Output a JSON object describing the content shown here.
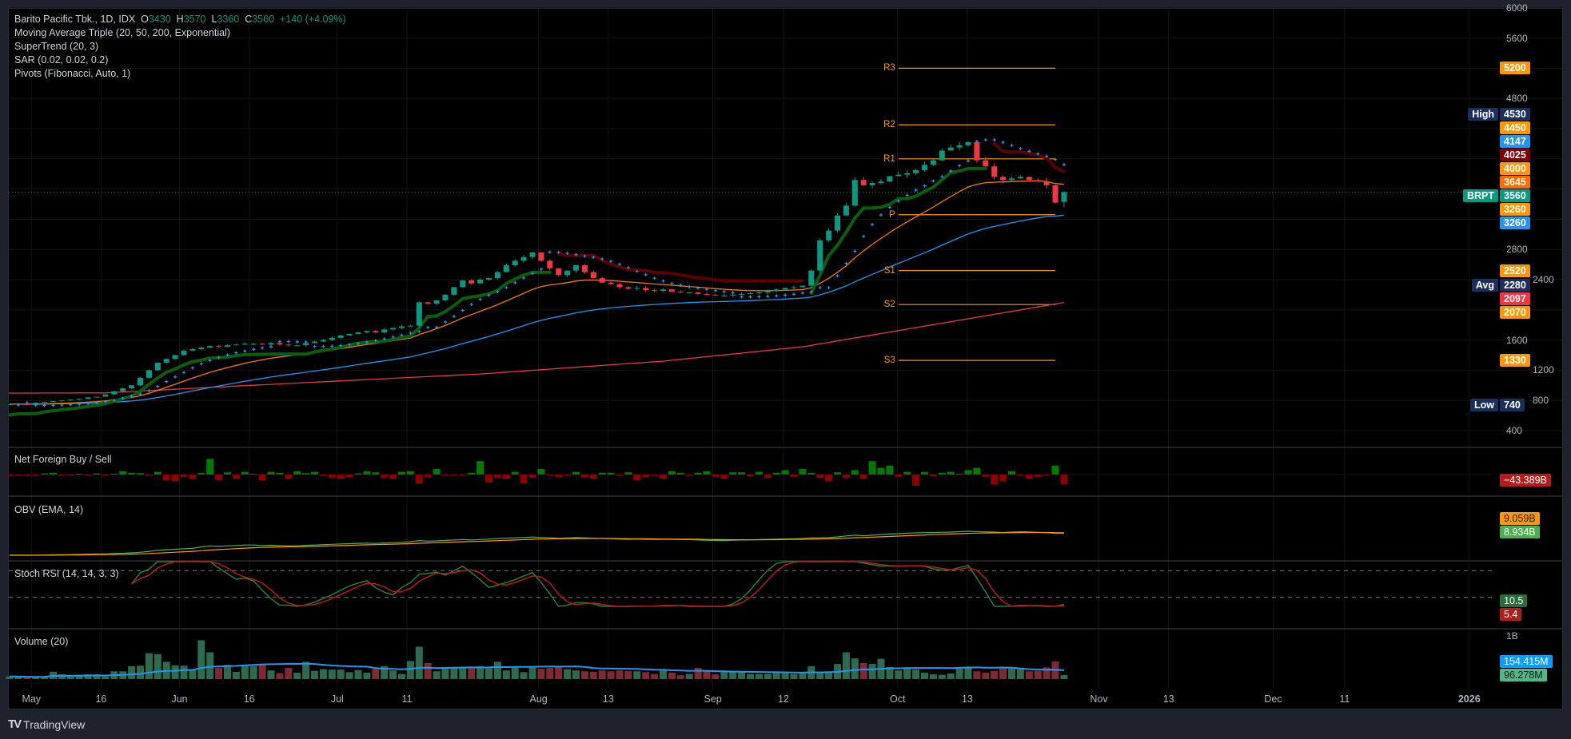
{
  "legend": {
    "symbol": "Barito Pacific Tbk., 1D, IDX",
    "o_label": "O",
    "open": "3430",
    "h_label": "H",
    "high": "3570",
    "l_label": "L",
    "low": "3360",
    "c_label": "C",
    "close": "3560",
    "change": "+140 (+4.09%)",
    "indicators": [
      "Moving Average Triple (20, 50, 200, Exponential)",
      "SuperTrend (20, 3)",
      "SAR (0.02, 0.02, 0.2)",
      "Pivots (Fibonacci, Auto, 1)"
    ]
  },
  "panes": {
    "net_foreign": {
      "title": "Net Foreign Buy / Sell",
      "value_label": "−43.389B"
    },
    "obv": {
      "title": "OBV (EMA, 14)",
      "ema_label": "9.059B",
      "obv_label": "8.934B"
    },
    "stoch": {
      "title": "Stoch RSI (14, 14, 3, 3)",
      "k_label": "10.5",
      "d_label": "5.4",
      "upper": 80,
      "lower": 20
    },
    "volume": {
      "title": "Volume (20)",
      "axis_label": "1B",
      "ma_label": "154.415M",
      "vol_label": "96.278M"
    }
  },
  "price_axis": {
    "ticks": [
      "6000",
      "5600",
      "4800",
      "2800",
      "2400",
      "1600",
      "1200",
      "800",
      "400"
    ],
    "labels": [
      {
        "value": 5200,
        "text": "5200",
        "bg": "#ff9800",
        "fg": "#ffffff",
        "tag": ""
      },
      {
        "value": 4530,
        "text": "4530",
        "bg": "#1b2f5e",
        "fg": "#ffffff",
        "tag": "High"
      },
      {
        "value": 4450,
        "text": "4450",
        "bg": "#ff9800",
        "fg": "#ffffff",
        "tag": ""
      },
      {
        "value": 4147,
        "text": "4147",
        "bg": "#2196f3",
        "fg": "#ffffff",
        "tag": ""
      },
      {
        "value": 4025,
        "text": "4025",
        "bg": "#7f0000",
        "fg": "#ffffff",
        "tag": ""
      },
      {
        "value": 4000,
        "text": "4000",
        "bg": "#ff9800",
        "fg": "#ffffff",
        "tag": ""
      },
      {
        "value": 3645,
        "text": "3645",
        "bg": "#ff6d00",
        "fg": "#ffffff",
        "tag": ""
      },
      {
        "value": 3560,
        "text": "3560",
        "bg": "#089981",
        "fg": "#ffffff",
        "tag": "BRPT"
      },
      {
        "value": 3260,
        "text": "3260",
        "bg": "#ff9800",
        "fg": "#ffffff",
        "tag": ""
      },
      {
        "value": 3259,
        "text": "3260",
        "bg": "#2196f3",
        "fg": "#ffffff",
        "tag": ""
      },
      {
        "value": 2520,
        "text": "2520",
        "bg": "#ff9800",
        "fg": "#ffffff",
        "tag": ""
      },
      {
        "value": 2280,
        "text": "2280",
        "bg": "#1b2f5e",
        "fg": "#ffffff",
        "tag": "Avg"
      },
      {
        "value": 2097,
        "text": "2097",
        "bg": "#f23645",
        "fg": "#ffffff",
        "tag": ""
      },
      {
        "value": 2070,
        "text": "2070",
        "bg": "#ff9800",
        "fg": "#ffffff",
        "tag": ""
      },
      {
        "value": 1330,
        "text": "1330",
        "bg": "#ff9800",
        "fg": "#ffffff",
        "tag": ""
      },
      {
        "value": 740,
        "text": "740",
        "bg": "#1b2f5e",
        "fg": "#ffffff",
        "tag": "Low"
      }
    ]
  },
  "time_axis": [
    {
      "text": "May",
      "bar": 2.5
    },
    {
      "text": "16",
      "bar": 10.5
    },
    {
      "text": "Jun",
      "bar": 19.5
    },
    {
      "text": "16",
      "bar": 27.5
    },
    {
      "text": "Jul",
      "bar": 37.6
    },
    {
      "text": "11",
      "bar": 45.6
    },
    {
      "text": "Aug",
      "bar": 60.7
    },
    {
      "text": "13",
      "bar": 68.7
    },
    {
      "text": "Sep",
      "bar": 80.7
    },
    {
      "text": "12",
      "bar": 88.8
    },
    {
      "text": "Oct",
      "bar": 101.9
    },
    {
      "text": "13",
      "bar": 109.9
    },
    {
      "text": "Nov",
      "bar": 125
    },
    {
      "text": "13",
      "bar": 133
    },
    {
      "text": "Dec",
      "bar": 145
    },
    {
      "text": "11",
      "bar": 153.2
    },
    {
      "text": "2026",
      "bar": 167.5,
      "bold": true
    }
  ],
  "chart_data": {
    "type": "candlestick",
    "title": "Barito Pacific Tbk., 1D, IDX",
    "ylim": [
      400,
      6000
    ],
    "y_scale": "linear",
    "closes": [
      750,
      760,
      740,
      770,
      780,
      790,
      800,
      810,
      820,
      840,
      850,
      880,
      920,
      960,
      1000,
      1100,
      1200,
      1300,
      1350,
      1400,
      1460,
      1480,
      1500,
      1520,
      1510,
      1530,
      1540,
      1550,
      1550,
      1540,
      1560,
      1540,
      1530,
      1530,
      1560,
      1580,
      1600,
      1630,
      1660,
      1680,
      1700,
      1720,
      1700,
      1740,
      1760,
      1780,
      1790,
      2100,
      2080,
      2125,
      2200,
      2300,
      2390,
      2350,
      2400,
      2420,
      2500,
      2590,
      2650,
      2700,
      2760,
      2650,
      2550,
      2460,
      2520,
      2590,
      2500,
      2420,
      2360,
      2340,
      2300,
      2280,
      2290,
      2260,
      2250,
      2270,
      2240,
      2230,
      2230,
      2210,
      2200,
      2190,
      2190,
      2200,
      2210,
      2220,
      2230,
      2250,
      2270,
      2290,
      2300,
      2320,
      2520,
      2920,
      3050,
      3250,
      3380,
      3720,
      3650,
      3680,
      3700,
      3770,
      3790,
      3810,
      3850,
      3920,
      3980,
      4110,
      4150,
      4180,
      4220,
      3980,
      3900,
      3760,
      3720,
      3740,
      3760,
      3720,
      3700,
      3650,
      3420,
      3560
    ],
    "last_bar": {
      "open": 3430,
      "high": 3570,
      "low": 3360,
      "close": 3560
    },
    "ema200_points": [
      [
        0,
        897
      ],
      [
        11,
        900
      ],
      [
        26,
        990
      ],
      [
        54,
        1150
      ],
      [
        75,
        1320
      ],
      [
        91,
        1510
      ],
      [
        121,
        2097
      ]
    ],
    "pivots": [
      {
        "label": "R3",
        "value": 5200
      },
      {
        "label": "R2",
        "value": 4450
      },
      {
        "label": "R1",
        "value": 4000
      },
      {
        "label": "P",
        "value": 3260
      },
      {
        "label": "S1",
        "value": 2520
      },
      {
        "label": "S2",
        "value": 2070
      },
      {
        "label": "S3",
        "value": 1330
      }
    ],
    "pivot_start_bar": 102,
    "last_price": 3560,
    "volume_m": [
      60,
      60,
      40,
      50,
      60,
      170,
      110,
      60,
      100,
      110,
      110,
      60,
      180,
      180,
      300,
      310,
      600,
      580,
      400,
      320,
      310,
      210,
      900,
      620,
      260,
      330,
      170,
      320,
      300,
      350,
      200,
      140,
      260,
      150,
      400,
      190,
      230,
      220,
      220,
      160,
      210,
      150,
      240,
      300,
      200,
      120,
      420,
      750,
      370,
      180,
      280,
      250,
      280,
      280,
      300,
      250,
      400,
      200,
      280,
      160,
      280,
      240,
      260,
      280,
      230,
      200,
      180,
      170,
      200,
      180,
      200,
      190,
      180,
      160,
      120,
      200,
      150,
      90,
      120,
      260,
      200,
      110,
      170,
      180,
      170,
      120,
      120,
      120,
      140,
      140,
      120,
      140,
      300,
      140,
      180,
      350,
      620,
      480,
      370,
      350,
      470,
      280,
      200,
      270,
      220,
      150,
      110,
      100,
      130,
      240,
      260,
      180,
      150,
      190,
      250,
      270,
      240,
      180,
      190,
      270,
      410,
      96
    ],
    "net_foreign_b": [
      -5,
      -5,
      -5,
      -5,
      5,
      8,
      -3,
      -3,
      3,
      -3,
      5,
      -3,
      3,
      15,
      8,
      6,
      -5,
      12,
      -25,
      -30,
      -10,
      -20,
      8,
      70,
      -25,
      10,
      -20,
      12,
      3,
      -25,
      12,
      8,
      -20,
      15,
      6,
      12,
      -5,
      -15,
      -20,
      -12,
      5,
      15,
      10,
      -15,
      -20,
      12,
      15,
      -40,
      -12,
      25,
      -5,
      -5,
      -5,
      8,
      60,
      -35,
      -15,
      -20,
      12,
      -40,
      -15,
      25,
      -5,
      -12,
      -5,
      12,
      -12,
      -18,
      8,
      8,
      -5,
      10,
      -25,
      -12,
      -5,
      -20,
      15,
      8,
      -5,
      8,
      15,
      -10,
      -18,
      10,
      10,
      -8,
      12,
      -15,
      8,
      20,
      -10,
      25,
      8,
      -15,
      -30,
      10,
      -15,
      20,
      -20,
      60,
      30,
      40,
      -10,
      12,
      -50,
      12,
      -8,
      8,
      12,
      3,
      20,
      30,
      -10,
      -45,
      -30,
      15,
      -5,
      -18,
      -10,
      -5,
      40,
      -43.389
    ]
  },
  "colors": {
    "up": "#089981",
    "down": "#f23645",
    "ema20": "#f57c00",
    "ema50": "#2196f3",
    "ema200": "#e53945",
    "st_up": "#0b5e0b",
    "st_down": "#5c0000",
    "sar": "#2196f3",
    "pivot": "#ff9800",
    "vol_up": "#2c6b50",
    "vol_down": "#7d2a33",
    "vol_ma": "#2196f3",
    "obv": "#4caf50",
    "obv_ema": "#ff9800",
    "stoch_k": "#2e7d32",
    "stoch_d": "#b71c1c",
    "nf_up": "#007a00",
    "nf_down": "#8b0000"
  },
  "branding": "TradingView"
}
